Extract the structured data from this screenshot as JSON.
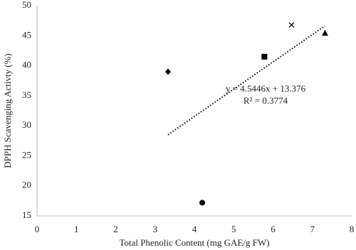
{
  "chart_data": {
    "type": "scatter",
    "x_label": "Total Phenolic Content (mg GAE/g FW)",
    "y_label": "DPPH Scavenging Activty (%)",
    "x": [
      3.33,
      4.2,
      5.78,
      6.47,
      7.32
    ],
    "values": [
      39.0,
      17.2,
      41.5,
      46.8,
      45.4
    ],
    "markers": [
      "diamond",
      "circle",
      "square",
      "cross",
      "triangle"
    ],
    "color": "#000000",
    "xlim": [
      0,
      8
    ],
    "xticks": [
      0,
      1,
      2,
      3,
      4,
      5,
      6,
      7,
      8
    ],
    "ylim": [
      15,
      50
    ],
    "yticks": [
      15,
      20,
      25,
      30,
      35,
      40,
      45,
      50
    ],
    "grid": false,
    "trendline": {
      "slope": 4.5446,
      "intercept": 13.376,
      "style": "dotted"
    },
    "annotations": [
      "y = 4.5446x + 13.376",
      "R² = 0.3774"
    ]
  }
}
